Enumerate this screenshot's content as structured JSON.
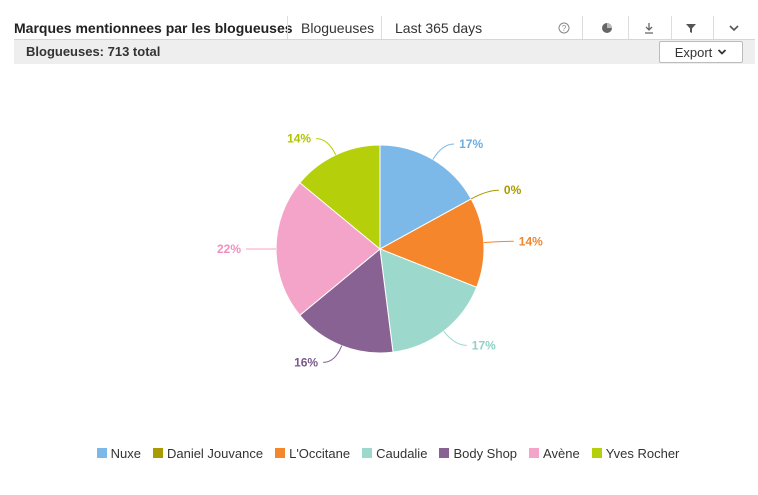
{
  "toolbar": {
    "title": "Marques mentionnees par les blogueuses",
    "audience": "Blogueuses",
    "period": "Last 365 days",
    "icons": [
      "help-icon",
      "pie-chart-icon",
      "download-icon",
      "filter-icon",
      "chevron-down-icon"
    ]
  },
  "subheader": {
    "label": "Blogueuses: 713 total",
    "export_label": "Export"
  },
  "chart_data": {
    "type": "pie",
    "title": "",
    "categories": [
      "Nuxe",
      "Daniel Jouvance",
      "L'Occitane",
      "Caudalie",
      "Body Shop",
      "Avène",
      "Yves Rocher"
    ],
    "values": [
      17,
      0,
      14,
      17,
      16,
      22,
      14
    ],
    "data_labels": [
      "17%",
      "0%",
      "14%",
      "17%",
      "16%",
      "22%",
      "14%"
    ],
    "colors": [
      "#7cb9e8",
      "#a89a00",
      "#f5862b",
      "#9dd8cc",
      "#876293",
      "#f4a4c8",
      "#b5cf0a"
    ],
    "label_colors": [
      "#6aaee4",
      "#a89a00",
      "#f0862f",
      "#8fd2c4",
      "#7a5a8c",
      "#f28fbf",
      "#b0c400"
    ],
    "legend_position": "bottom"
  }
}
